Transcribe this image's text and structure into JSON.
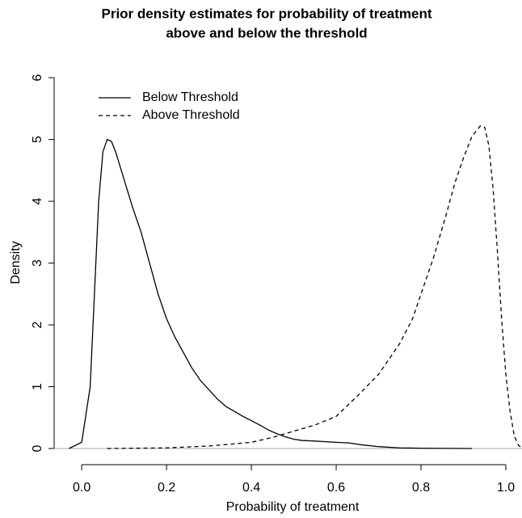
{
  "chart_data": {
    "type": "line",
    "title": [
      "Prior density estimates for probability of treatment",
      "above and below the threshold"
    ],
    "x_label": "Probability of treatment",
    "y_label": "Density",
    "xlim": [
      -0.065,
      1.04
    ],
    "ylim": [
      -0.2,
      6.25
    ],
    "xticks": [
      {
        "value": 0,
        "label": "0.0"
      },
      0.2,
      0.4,
      0.6,
      0.8,
      {
        "value": 1,
        "label": "1.0"
      }
    ],
    "yticks": [
      0,
      1,
      2,
      3,
      4,
      5,
      6
    ],
    "legend": "top-left",
    "series": [
      {
        "name": "Below Threshold",
        "color": "#000000",
        "dash": "solid",
        "x": [
          -0.03,
          0.0,
          0.02,
          0.03,
          0.04,
          0.05,
          0.06,
          0.07,
          0.08,
          0.1,
          0.12,
          0.14,
          0.16,
          0.18,
          0.2,
          0.22,
          0.24,
          0.26,
          0.28,
          0.3,
          0.32,
          0.34,
          0.36,
          0.38,
          0.4,
          0.42,
          0.44,
          0.46,
          0.48,
          0.5,
          0.52,
          0.55,
          0.6,
          0.63,
          0.66,
          0.7,
          0.75,
          0.8,
          0.92
        ],
        "values": [
          0,
          0.1,
          1.0,
          2.5,
          4.0,
          4.8,
          5.0,
          4.97,
          4.8,
          4.35,
          3.9,
          3.5,
          3.0,
          2.5,
          2.1,
          1.8,
          1.55,
          1.3,
          1.1,
          0.95,
          0.8,
          0.68,
          0.6,
          0.52,
          0.45,
          0.38,
          0.3,
          0.24,
          0.19,
          0.15,
          0.13,
          0.12,
          0.1,
          0.09,
          0.06,
          0.03,
          0.01,
          0.005,
          0
        ]
      },
      {
        "name": "Above Threshold",
        "color": "#000000",
        "dash": "dashed",
        "x": [
          0.06,
          0.2,
          0.3,
          0.35,
          0.4,
          0.45,
          0.5,
          0.55,
          0.6,
          0.65,
          0.7,
          0.75,
          0.78,
          0.8,
          0.83,
          0.86,
          0.88,
          0.9,
          0.92,
          0.94,
          0.95,
          0.96,
          0.97,
          0.98,
          0.99,
          1.0,
          1.01,
          1.02,
          1.03,
          1.04
        ],
        "values": [
          0,
          0.01,
          0.04,
          0.07,
          0.1,
          0.18,
          0.28,
          0.38,
          0.52,
          0.85,
          1.2,
          1.7,
          2.1,
          2.5,
          3.1,
          3.8,
          4.3,
          4.7,
          5.05,
          5.22,
          5.2,
          4.9,
          4.2,
          3.2,
          2.1,
          1.2,
          0.6,
          0.2,
          0.05,
          0
        ]
      }
    ]
  }
}
